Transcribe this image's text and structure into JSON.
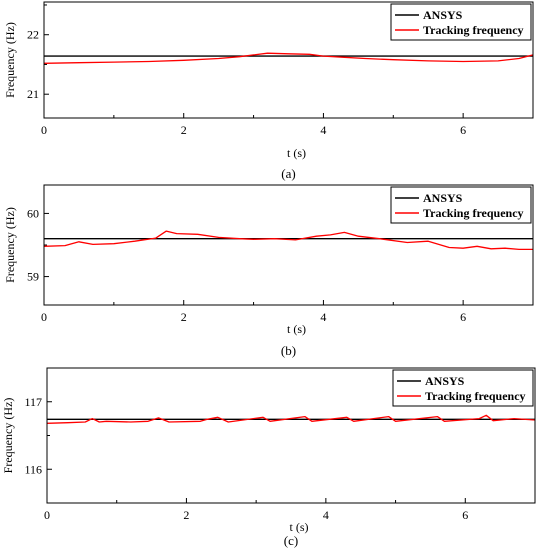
{
  "colors": {
    "ansys": "#000000",
    "tracking": "#ff0000",
    "axis": "#000000"
  },
  "chart_data": [
    {
      "panel_label": "(a)",
      "type": "line",
      "xlabel": "t (s)",
      "ylabel": "Frequency (Hz)",
      "xlim": [
        0,
        7
      ],
      "ylim": [
        20.6,
        22.55
      ],
      "xticks": [
        0,
        2,
        4,
        6
      ],
      "xtick_labels": [
        "0",
        "2",
        "4",
        "6"
      ],
      "yticks": [
        21,
        22
      ],
      "ytick_labels": [
        "21",
        "22"
      ],
      "legend_position": "top-right",
      "series": [
        {
          "name": "ANSYS",
          "color": "#000000",
          "x": [
            0,
            7
          ],
          "y": [
            21.64,
            21.64
          ]
        },
        {
          "name": "Tracking frequency",
          "color": "#ff0000",
          "x": [
            0,
            0.5,
            1,
            1.5,
            2,
            2.5,
            2.8,
            3.0,
            3.2,
            3.5,
            3.8,
            4.0,
            4.3,
            4.6,
            5.0,
            5.5,
            6.0,
            6.5,
            6.8,
            7.0
          ],
          "y": [
            21.52,
            21.53,
            21.54,
            21.55,
            21.57,
            21.6,
            21.63,
            21.66,
            21.69,
            21.68,
            21.67,
            21.64,
            21.62,
            21.6,
            21.58,
            21.56,
            21.55,
            21.56,
            21.6,
            21.66
          ]
        }
      ]
    },
    {
      "panel_label": "(b)",
      "type": "line",
      "xlabel": "t (s)",
      "ylabel": "Frequency (Hz)",
      "xlim": [
        0,
        7
      ],
      "ylim": [
        58.55,
        60.45
      ],
      "xticks": [
        0,
        2,
        4,
        6
      ],
      "xtick_labels": [
        "0",
        "2",
        "4",
        "6"
      ],
      "yticks": [
        59,
        60
      ],
      "ytick_labels": [
        "59",
        "60"
      ],
      "legend_position": "top-right",
      "series": [
        {
          "name": "ANSYS",
          "color": "#000000",
          "x": [
            0,
            7
          ],
          "y": [
            59.6,
            59.6
          ]
        },
        {
          "name": "Tracking frequency",
          "color": "#ff0000",
          "x": [
            0,
            0.3,
            0.5,
            0.7,
            1.0,
            1.3,
            1.6,
            1.75,
            1.9,
            2.2,
            2.5,
            2.8,
            3.0,
            3.3,
            3.6,
            3.9,
            4.1,
            4.3,
            4.5,
            4.8,
            5.2,
            5.5,
            5.8,
            6.0,
            6.2,
            6.4,
            6.6,
            6.8,
            7.0
          ],
          "y": [
            59.48,
            59.49,
            59.55,
            59.51,
            59.52,
            59.56,
            59.61,
            59.72,
            59.68,
            59.67,
            59.62,
            59.6,
            59.59,
            59.6,
            59.58,
            59.64,
            59.66,
            59.7,
            59.64,
            59.6,
            59.54,
            59.56,
            59.46,
            59.45,
            59.48,
            59.44,
            59.45,
            59.43,
            59.43
          ]
        }
      ]
    },
    {
      "panel_label": "(c)",
      "type": "line",
      "xlabel": "t (s)",
      "ylabel": "Frequency (Hz)",
      "xlim": [
        0,
        7
      ],
      "ylim": [
        115.5,
        117.5
      ],
      "xticks": [
        0,
        2,
        4,
        6
      ],
      "xtick_labels": [
        "0",
        "2",
        "4",
        "6"
      ],
      "yticks": [
        116,
        117
      ],
      "ytick_labels": [
        "116",
        "117"
      ],
      "legend_position": "top-right",
      "series": [
        {
          "name": "ANSYS",
          "color": "#000000",
          "x": [
            0,
            7
          ],
          "y": [
            116.74,
            116.74
          ]
        },
        {
          "name": "Tracking frequency",
          "color": "#ff0000",
          "x": [
            0,
            0.3,
            0.55,
            0.65,
            0.75,
            0.85,
            1.2,
            1.45,
            1.6,
            1.75,
            2.2,
            2.3,
            2.45,
            2.6,
            3.1,
            3.2,
            3.7,
            3.8,
            4.3,
            4.4,
            4.9,
            5.0,
            5.6,
            5.7,
            6.2,
            6.3,
            6.4,
            6.7,
            7.0
          ],
          "y": [
            116.68,
            116.69,
            116.7,
            116.75,
            116.7,
            116.71,
            116.7,
            116.71,
            116.76,
            116.7,
            116.71,
            116.74,
            116.77,
            116.7,
            116.77,
            116.71,
            116.78,
            116.71,
            116.77,
            116.71,
            116.78,
            116.71,
            116.78,
            116.71,
            116.75,
            116.8,
            116.72,
            116.75,
            116.73
          ]
        }
      ]
    }
  ]
}
